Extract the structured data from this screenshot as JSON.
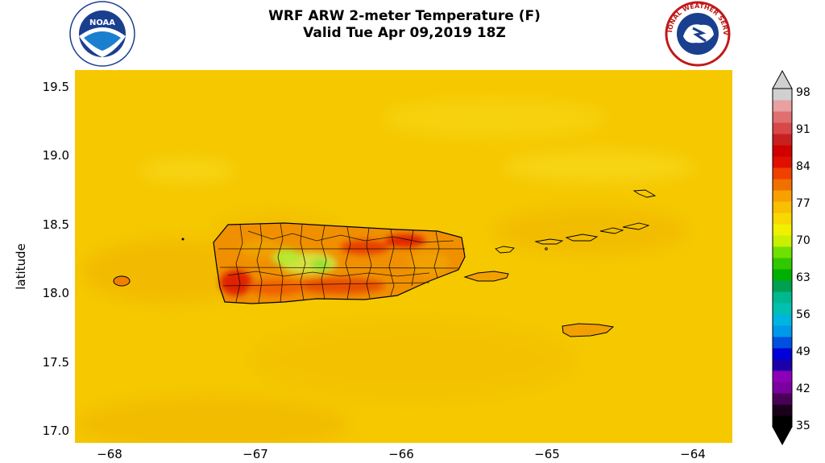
{
  "title_line1": "WRF ARW 2-meter Temperature (F)",
  "title_line2": "Valid Tue Apr 09,2019 18Z",
  "logos": {
    "left": {
      "name": "noaa-logo",
      "text": "NOAA"
    },
    "right": {
      "name": "nws-logo",
      "text": "NATIONAL WEATHER SERVICE"
    }
  },
  "axes": {
    "ylabel": "latitude",
    "yticks": [
      "19.5",
      "19.0",
      "18.5",
      "18.0",
      "17.5",
      "17.0"
    ],
    "xticks": [
      "−68",
      "−67",
      "−66",
      "−65",
      "−64"
    ]
  },
  "colorbar": {
    "ticks": [
      "98",
      "91",
      "84",
      "77",
      "70",
      "63",
      "56",
      "49",
      "42",
      "35"
    ],
    "colors": [
      "#000000",
      "#1a001a",
      "#4b0058",
      "#7a00a0",
      "#8c00b8",
      "#1a00a8",
      "#0000d8",
      "#0050e0",
      "#0098e8",
      "#00b4e0",
      "#00c0b0",
      "#00b890",
      "#00a050",
      "#00b000",
      "#30c800",
      "#70e000",
      "#c8f000",
      "#f0f000",
      "#f8d800",
      "#f8c000",
      "#f8a000",
      "#f07000",
      "#f04000",
      "#e01000",
      "#d00000",
      "#c82020",
      "#d84848",
      "#e07070",
      "#e8a0a0",
      "#d0d0d0"
    ]
  },
  "colors": {
    "background_temp": "#f5c800",
    "warm": "#f08000",
    "hot": "#e02000",
    "cool": "#c8e840"
  }
}
